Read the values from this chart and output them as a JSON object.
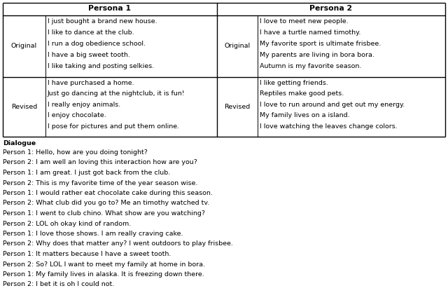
{
  "persona1_header": "Persona 1",
  "persona2_header": "Persona 2",
  "original_label": "Original",
  "revised_label": "Revised",
  "persona1_original": [
    "I just bought a brand new house.",
    "I like to dance at the club.",
    "I run a dog obedience school.",
    "I have a big sweet tooth.",
    "I like taking and posting selkies."
  ],
  "persona2_original": [
    "I love to meet new people.",
    "I have a turtle named timothy.",
    "My favorite sport is ultimate frisbee.",
    "My parents are living in bora bora.",
    "Autumn is my favorite season."
  ],
  "persona1_revised": [
    "I have purchased a home.",
    "Just go dancing at the nightclub, it is fun!",
    "I really enjoy animals.",
    "I enjoy chocolate.",
    "I pose for pictures and put them online."
  ],
  "persona2_revised": [
    "I like getting friends.",
    "Reptiles make good pets.",
    "I love to run around and get out my energy.",
    "My family lives on a island.",
    "I love watching the leaves change colors."
  ],
  "dialogue_lines": [
    "Person 1: Hello, how are you doing tonight?",
    "Person 2: I am well an loving this interaction how are you?",
    "Person 1: I am great. I just got back from the club.",
    "Person 2: This is my favorite time of the year season wise.",
    "Person 1: I would rather eat chocolate cake during this season.",
    "Person 2: What club did you go to? Me an timothy watched tv.",
    "Person 1: I went to club chino. What show are you watching?",
    "Person 2: LOL oh okay kind of random.",
    "Person 1: I love those shows. I am really craving cake.",
    "Person 2: Why does that matter any? I went outdoors to play frisbee.",
    "Person 1: It matters because I have a sweet tooth.",
    "Person 2: So? LOL I want to meet my family at home in bora.",
    "Person 1: My family lives in alaska. It is freezing down there.",
    "Person 2: I bet it is oh I could not."
  ],
  "bg_color": "#ffffff",
  "text_color": "#000000",
  "border_color": "#000000",
  "fontsize": 6.8,
  "header_fontsize": 7.8,
  "dialogue_fontsize": 6.8
}
